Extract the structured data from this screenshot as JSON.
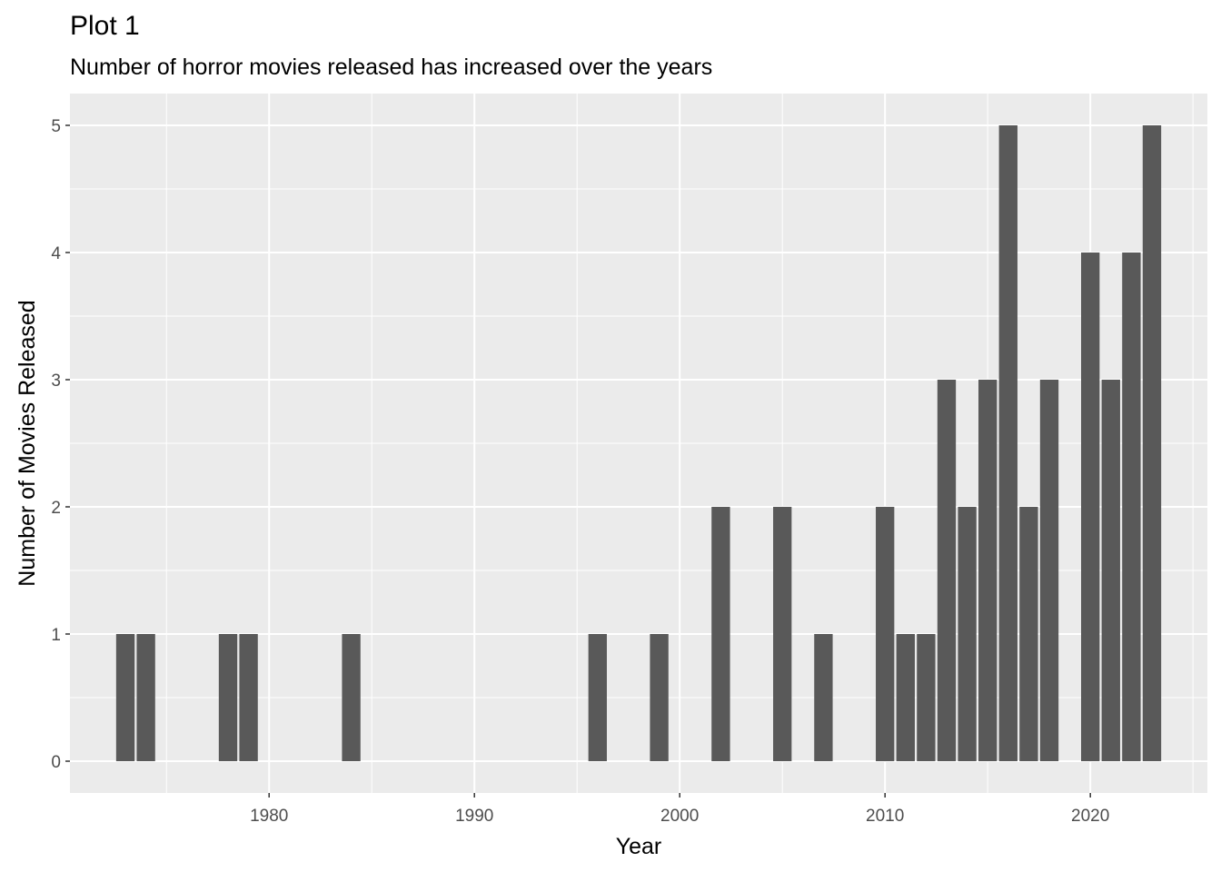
{
  "chart_data": {
    "type": "bar",
    "title": "Plot 1",
    "subtitle": "Number of horror movies released has increased over the years",
    "xlabel": "Year",
    "ylabel": "Number of Movies Released",
    "x": [
      1973,
      1974,
      1978,
      1979,
      1984,
      1996,
      1999,
      2002,
      2005,
      2007,
      2010,
      2011,
      2012,
      2013,
      2014,
      2015,
      2016,
      2017,
      2018,
      2020,
      2021,
      2022,
      2023
    ],
    "values": [
      1,
      1,
      1,
      1,
      1,
      1,
      1,
      2,
      2,
      1,
      2,
      1,
      1,
      3,
      2,
      3,
      5,
      2,
      3,
      4,
      3,
      4,
      5
    ],
    "xlim": [
      1970.3,
      2025.7
    ],
    "ylim": [
      -0.25,
      5.25
    ],
    "x_ticks": [
      1980,
      1990,
      2000,
      2010,
      2020
    ],
    "x_tick_labels": [
      "1980",
      "1990",
      "2000",
      "2010",
      "2020"
    ],
    "y_ticks": [
      0,
      1,
      2,
      3,
      4,
      5
    ],
    "y_tick_labels": [
      "0",
      "1",
      "2",
      "3",
      "4",
      "5"
    ],
    "grid": true,
    "colors": {
      "panel": "#ebebeb",
      "grid": "#ffffff",
      "bar": "#595959",
      "tick_text": "#4d4d4d"
    }
  }
}
